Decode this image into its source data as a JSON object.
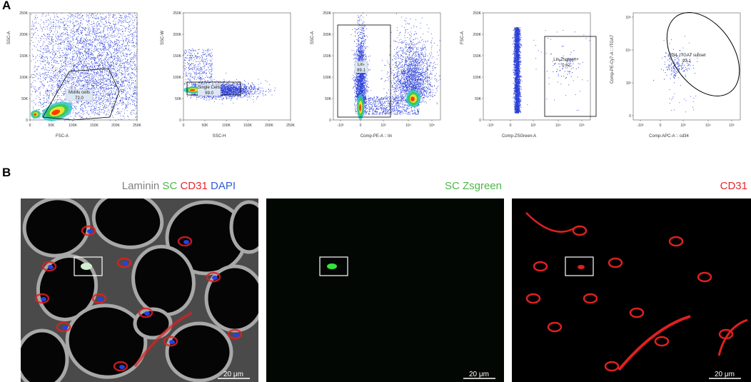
{
  "panel_a": {
    "letter": "A"
  },
  "panel_b": {
    "letter": "B"
  },
  "flow_plots": [
    {
      "x_label": "FSC-A",
      "y_label": "SSC-A",
      "x_ticks": [
        "0",
        "50K",
        "100K",
        "150K",
        "200K",
        "250K"
      ],
      "y_ticks": [
        "0",
        "50K",
        "100K",
        "150K",
        "200K",
        "250K"
      ],
      "gate_name": "MsMu cells",
      "gate_value": "72.0"
    },
    {
      "x_label": "SSC-H",
      "y_label": "SSC-W",
      "x_ticks": [
        "0",
        "50K",
        "100K",
        "150K",
        "200K",
        "250K"
      ],
      "y_ticks": [
        "0",
        "50K",
        "100K",
        "150K",
        "200K",
        "250K"
      ],
      "gate_name": "Single Cells",
      "gate_value": "99.0"
    },
    {
      "x_label": "Comp-PE-A :: lin",
      "y_label": "SSC-A",
      "x_ticks": [
        "-10³",
        "0",
        "10³",
        "10⁴",
        "10⁵"
      ],
      "y_ticks": [
        "0",
        "50K",
        "100K",
        "150K",
        "200K",
        "250K"
      ],
      "gate_name": "Lin-",
      "gate_value": "89.1"
    },
    {
      "x_label": "Comp-ZSGreen-A",
      "y_label": "FSC-A",
      "x_ticks": [
        "-10³",
        "0",
        "10³",
        "10⁴",
        "10⁵"
      ],
      "y_ticks": [
        "0",
        "50K",
        "100K",
        "150K",
        "200K",
        "250K"
      ],
      "gate_name": "Lin-Zsgreen+",
      "gate_value": "0.62"
    },
    {
      "x_label": "Comp-APC-A :: cd34",
      "y_label": "Comp-PE-Cy7-A :: ITGA7",
      "x_ticks": [
        "-10³",
        "0",
        "10³",
        "10⁴",
        "10⁵"
      ],
      "y_ticks": [
        "0",
        "10³",
        "10⁴",
        "10⁵"
      ],
      "gate_name": "cd34, ITGA7 subset",
      "gate_value": "93.1"
    }
  ],
  "micro_panels": [
    {
      "title_parts": [
        {
          "text": "Laminin",
          "color": "#808080"
        },
        {
          "text": "SC",
          "color": "#4db848"
        },
        {
          "text": "CD31",
          "color": "#e8262a"
        },
        {
          "text": "DAPI",
          "color": "#2f5cd6"
        }
      ],
      "scale_bar": "20 μm"
    },
    {
      "title_parts": [
        {
          "text": "SC Zsgreen",
          "color": "#4db848"
        }
      ],
      "scale_bar": "20 μm"
    },
    {
      "title_parts": [
        {
          "text": "CD31",
          "color": "#e8262a"
        }
      ],
      "scale_bar": "20 μm"
    }
  ],
  "colors": {
    "dot": "#2b3fd8",
    "density_high": "#ff3c00",
    "density_mid": "#f2e62a",
    "density_low": "#3cc84a",
    "laminin": "#9a9a9a",
    "zsgreen": "#32e63c",
    "cd31": "#e02020",
    "dapi": "#2840e0"
  }
}
